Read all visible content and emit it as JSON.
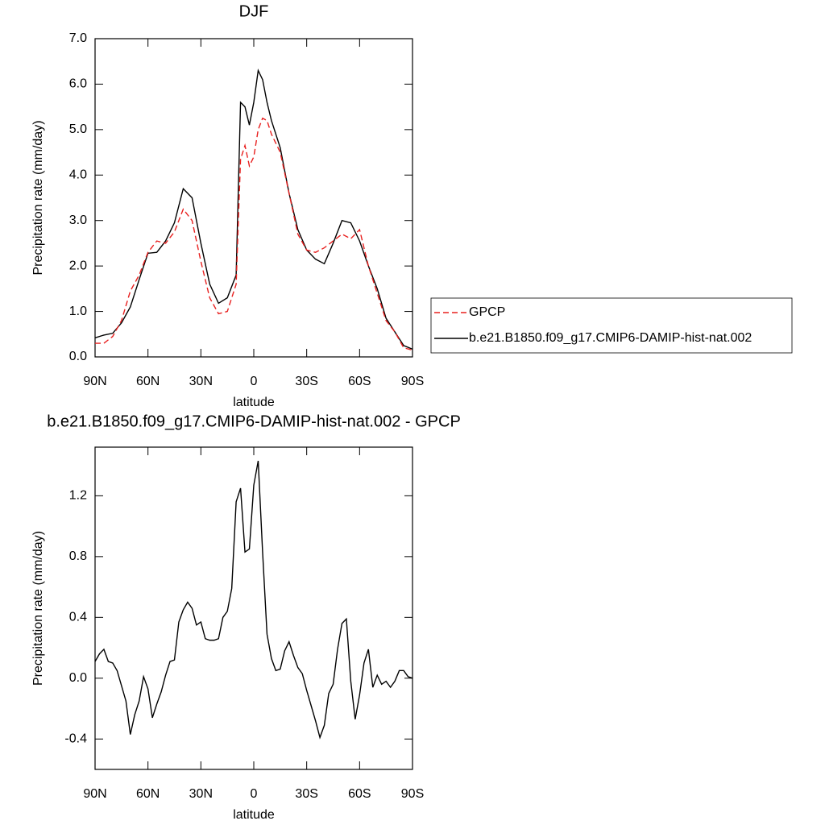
{
  "chart_data": [
    {
      "type": "line",
      "title": "DJF",
      "xlabel": "latitude",
      "ylabel": "Precipitation rate (mm/day)",
      "x": [
        90,
        85,
        80,
        75,
        70,
        65,
        60,
        55,
        50,
        45,
        40,
        35,
        30,
        25,
        20,
        15,
        10,
        7.5,
        5,
        2.5,
        0,
        -2.5,
        -5,
        -7.5,
        -10,
        -15,
        -20,
        -25,
        -30,
        -35,
        -40,
        -45,
        -50,
        -55,
        -60,
        -65,
        -70,
        -75,
        -80,
        -85,
        -90
      ],
      "series": [
        {
          "name": "GPCP",
          "color": "#e8201f",
          "dash": "dashed",
          "values": [
            0.3,
            0.3,
            0.45,
            0.8,
            1.45,
            1.8,
            2.3,
            2.55,
            2.5,
            2.75,
            3.25,
            3.0,
            2.1,
            1.3,
            0.95,
            1.0,
            1.6,
            4.35,
            4.65,
            4.2,
            4.4,
            5.0,
            5.25,
            5.2,
            4.9,
            4.5,
            3.6,
            2.7,
            2.35,
            2.3,
            2.4,
            2.55,
            2.7,
            2.6,
            2.8,
            2.0,
            1.4,
            0.8,
            0.55,
            0.2,
            0.15
          ]
        },
        {
          "name": "b.e21.B1850.f09_g17.CMIP6-DAMIP-hist-nat.002",
          "color": "#000000",
          "dash": "solid",
          "values": [
            0.42,
            0.48,
            0.52,
            0.75,
            1.1,
            1.7,
            2.28,
            2.3,
            2.55,
            2.95,
            3.7,
            3.5,
            2.5,
            1.6,
            1.18,
            1.3,
            1.8,
            5.6,
            5.5,
            5.1,
            5.6,
            6.3,
            6.1,
            5.6,
            5.2,
            4.6,
            3.6,
            2.8,
            2.35,
            2.15,
            2.05,
            2.5,
            3.0,
            2.95,
            2.55,
            2.0,
            1.5,
            0.85,
            0.55,
            0.25,
            0.17
          ]
        }
      ],
      "xlim": [
        90,
        -90
      ],
      "xticks": [
        {
          "value": 90,
          "label": "90N"
        },
        {
          "value": 60,
          "label": "60N"
        },
        {
          "value": 30,
          "label": "30N"
        },
        0,
        {
          "value": -30,
          "label": "30S"
        },
        {
          "value": -60,
          "label": "60S"
        },
        {
          "value": -90,
          "label": "90S"
        }
      ],
      "ylim": [
        0,
        7
      ],
      "yticks": [
        {
          "value": 0,
          "label": "0.0"
        },
        {
          "value": 1,
          "label": "1.0"
        },
        {
          "value": 2,
          "label": "2.0"
        },
        {
          "value": 3,
          "label": "3.0"
        },
        {
          "value": 4,
          "label": "4.0"
        },
        {
          "value": 5,
          "label": "5.0"
        },
        {
          "value": 6,
          "label": "6.0"
        },
        {
          "value": 7,
          "label": "7.0"
        }
      ],
      "legend": "right"
    },
    {
      "type": "line",
      "title": "b.e21.B1850.f09_g17.CMIP6-DAMIP-hist-nat.002 - GPCP",
      "xlabel": "latitude",
      "ylabel": "Precipitation rate (mm/day)",
      "x": [
        90,
        87.5,
        85,
        82.5,
        80,
        77.5,
        75,
        72.5,
        70,
        67.5,
        65,
        62.5,
        60,
        57.5,
        55,
        52.5,
        50,
        47.5,
        45,
        42.5,
        40,
        37.5,
        35,
        32.5,
        30,
        27.5,
        25,
        22.5,
        20,
        17.5,
        15,
        12.5,
        10,
        7.5,
        5,
        2.5,
        0,
        -2.5,
        -5,
        -7.5,
        -10,
        -12.5,
        -15,
        -17.5,
        -20,
        -22.5,
        -25,
        -27.5,
        -30,
        -32.5,
        -35,
        -37.5,
        -40,
        -42.5,
        -45,
        -47.5,
        -50,
        -52.5,
        -55,
        -57.5,
        -60,
        -62.5,
        -65,
        -67.5,
        -70,
        -72.5,
        -75,
        -77.5,
        -80,
        -82.5,
        -85,
        -87.5,
        -90
      ],
      "color": "#000000",
      "values": [
        0.11,
        0.16,
        0.19,
        0.11,
        0.1,
        0.05,
        -0.05,
        -0.15,
        -0.37,
        -0.24,
        -0.15,
        0.01,
        -0.07,
        -0.26,
        -0.17,
        -0.09,
        0.02,
        0.11,
        0.12,
        0.37,
        0.45,
        0.5,
        0.46,
        0.35,
        0.37,
        0.26,
        0.25,
        0.25,
        0.26,
        0.4,
        0.44,
        0.59,
        1.16,
        1.25,
        0.83,
        0.85,
        1.27,
        1.43,
        0.83,
        0.29,
        0.13,
        0.05,
        0.06,
        0.18,
        0.24,
        0.15,
        0.07,
        0.03,
        -0.08,
        -0.18,
        -0.28,
        -0.39,
        -0.31,
        -0.1,
        -0.04,
        0.19,
        0.36,
        0.39,
        -0.02,
        -0.27,
        -0.11,
        0.1,
        0.19,
        -0.06,
        0.02,
        -0.04,
        -0.02,
        -0.06,
        -0.02,
        0.05,
        0.05,
        0.01,
        0.0
      ],
      "xlim": [
        90,
        -90
      ],
      "xticks": [
        {
          "value": 90,
          "label": "90N"
        },
        {
          "value": 60,
          "label": "60N"
        },
        {
          "value": 30,
          "label": "30N"
        },
        0,
        {
          "value": -30,
          "label": "30S"
        },
        {
          "value": -60,
          "label": "60S"
        },
        {
          "value": -90,
          "label": "90S"
        }
      ],
      "ylim": [
        -0.6,
        1.52
      ],
      "yticks": [
        -0.4,
        {
          "value": 0,
          "label": "0.0"
        },
        0.4,
        0.8,
        1.2
      ]
    }
  ]
}
